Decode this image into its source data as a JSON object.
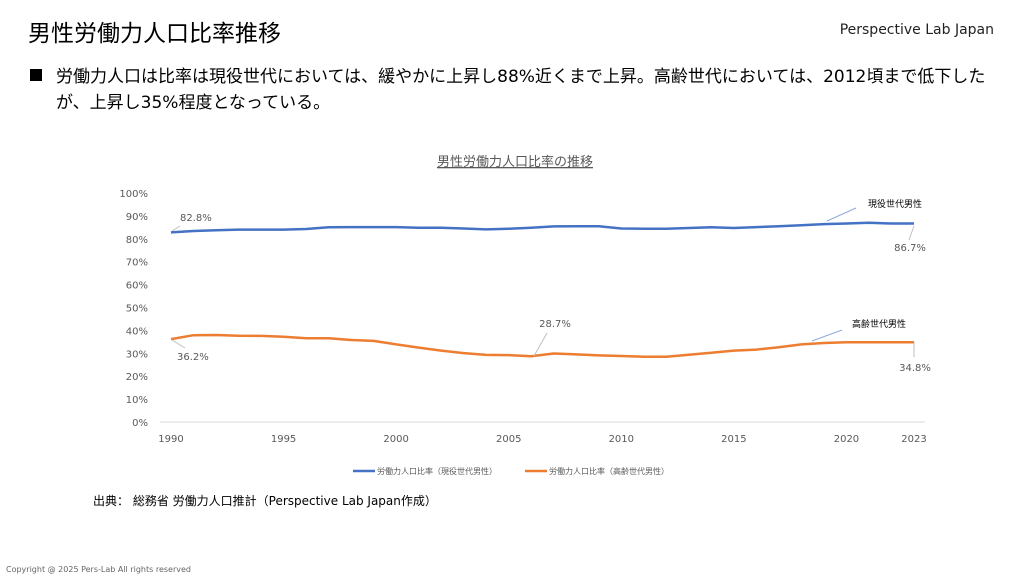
{
  "header": {
    "title": "男性労働力人口比率推移",
    "brand": "Perspective Lab Japan"
  },
  "bullet": "労働力人口は比率は現役世代においては、緩やかに上昇し88%近くまで上昇。高齢世代においては、2012頃まで低下したが、上昇し35%程度となっている。",
  "source": "出典： 総務省 労働力人口推計（Perspective Lab Japan作成）",
  "copyright": "Copyright @ 2025 Pers-Lab All rights reserved",
  "chart_data": {
    "type": "line",
    "title": "男性労働力人口比率の推移",
    "xlabel": "",
    "ylabel": "",
    "ylim": [
      0,
      100
    ],
    "yticks": [
      "0%",
      "10%",
      "20%",
      "30%",
      "40%",
      "50%",
      "60%",
      "70%",
      "80%",
      "90%",
      "100%"
    ],
    "xticks": [
      "1990",
      "1995",
      "2000",
      "2005",
      "2010",
      "2015",
      "2020",
      "2023"
    ],
    "grid": false,
    "legend_position": "bottom",
    "x": [
      1990,
      1991,
      1992,
      1993,
      1994,
      1995,
      1996,
      1997,
      1998,
      1999,
      2000,
      2001,
      2002,
      2003,
      2004,
      2005,
      2006,
      2007,
      2008,
      2009,
      2010,
      2011,
      2012,
      2013,
      2014,
      2015,
      2016,
      2017,
      2018,
      2019,
      2020,
      2021,
      2022,
      2023
    ],
    "series": [
      {
        "name": "労働力人口比率（現役世代男性）",
        "short": "現役世代男性",
        "color": "#4472C4",
        "values": [
          82.8,
          83.4,
          83.7,
          84.0,
          84.0,
          84.0,
          84.3,
          85.0,
          85.1,
          85.1,
          85.1,
          84.8,
          84.8,
          84.5,
          84.1,
          84.4,
          84.8,
          85.4,
          85.5,
          85.5,
          84.5,
          84.4,
          84.4,
          84.7,
          85.0,
          84.7,
          85.1,
          85.5,
          85.9,
          86.4,
          86.7,
          87.0,
          86.7,
          86.7
        ],
        "labels": [
          {
            "year": 1990,
            "text": "82.8%"
          },
          {
            "year": 2023,
            "text": "86.7%"
          }
        ]
      },
      {
        "name": "労働力人口比率（高齢世代男性）",
        "short": "高齢世代男性",
        "color": "#ED7D31",
        "values": [
          36.2,
          37.9,
          38.0,
          37.7,
          37.6,
          37.2,
          36.6,
          36.6,
          35.8,
          35.4,
          33.9,
          32.5,
          31.2,
          30.1,
          29.3,
          29.2,
          28.7,
          29.9,
          29.5,
          29.1,
          28.8,
          28.5,
          28.5,
          29.4,
          30.2,
          31.2,
          31.6,
          32.6,
          33.9,
          34.5,
          34.8,
          34.8,
          34.8,
          34.8
        ],
        "labels": [
          {
            "year": 1990,
            "text": "36.2%"
          },
          {
            "year": 2006,
            "text": "28.7%"
          },
          {
            "year": 2023,
            "text": "34.8%"
          }
        ]
      }
    ]
  }
}
